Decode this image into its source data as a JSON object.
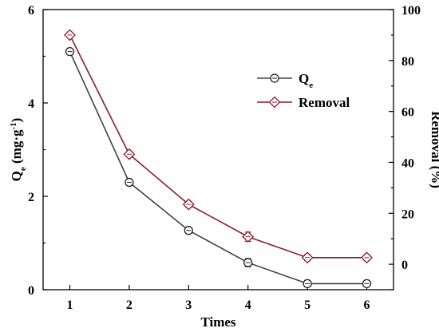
{
  "chart_data": {
    "type": "line",
    "xlabel": "Times",
    "ylabel_left": {
      "main": "Q",
      "sub": "e",
      "rest": " (mg·g",
      "sup": "-1",
      "end": ")"
    },
    "ylabel_right": "Removal (%)",
    "x": [
      1,
      2,
      3,
      4,
      5,
      6
    ],
    "x_ticks": [
      "1",
      "2",
      "3",
      "4",
      "5",
      "6"
    ],
    "xlim": [
      0.55,
      6.45
    ],
    "ylim_left": [
      0,
      6
    ],
    "yticks_left": [
      "0",
      "2",
      "4",
      "6"
    ],
    "ylim_right": [
      -10,
      100
    ],
    "yticks_right": [
      "0",
      "20",
      "40",
      "60",
      "80",
      "100"
    ],
    "grid": false,
    "legend_position": "top-right",
    "series": [
      {
        "name": "Qe",
        "legend_main": "Q",
        "legend_sub": "e",
        "axis": "left",
        "marker": "circle",
        "color": "#404040",
        "values": [
          5.1,
          2.3,
          1.27,
          0.58,
          0.13,
          0.13
        ],
        "errors": [
          0.02,
          0.04,
          0.06,
          0.09,
          0.07,
          0.06
        ]
      },
      {
        "name": "Removal",
        "legend_main": "Removal",
        "legend_sub": "",
        "axis": "right",
        "marker": "diamond",
        "color": "#8b1a2b",
        "values": [
          90.0,
          43.2,
          23.5,
          10.8,
          2.6,
          2.6
        ],
        "errors": [
          0.4,
          1.0,
          1.2,
          1.8,
          1.2,
          1.2
        ]
      }
    ]
  }
}
